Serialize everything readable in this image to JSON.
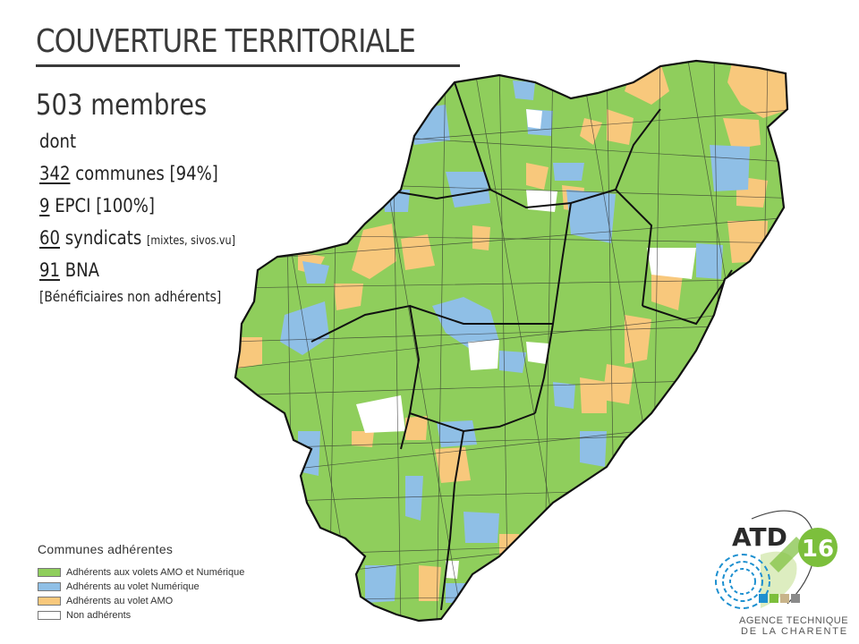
{
  "header": {
    "title": "COUVERTURE TERRITORIALE",
    "members": "503 membres"
  },
  "stats": {
    "dont": "dont",
    "communes": {
      "number": "342",
      "text": " communes [94%]"
    },
    "epci": {
      "number": "9",
      "text": " EPCI [100%]"
    },
    "syndicats": {
      "number": "60",
      "text": " syndicats ",
      "detail": "[mixtes, sivos.vu]"
    },
    "bna": {
      "number": "91",
      "text": " BNA"
    },
    "bna_note": "[Bénéficiaires non adhérents]"
  },
  "legend": {
    "title": "Communes adhérentes",
    "items": [
      {
        "label": "Adhérents aux volets AMO et Numérique",
        "color": "#8fce5c"
      },
      {
        "label": "Adhérents au volet Numérique",
        "color": "#8fbfe6"
      },
      {
        "label": "Adhérents au volet AMO",
        "color": "#f8c87c"
      },
      {
        "label": "Non adhérents",
        "color": "#ffffff"
      }
    ]
  },
  "map": {
    "colors": {
      "amo_numerique": "#8fce5c",
      "numerique": "#8fbfe6",
      "amo": "#f8c87c",
      "non_adherent": "#ffffff",
      "border": "#1a1a1a"
    }
  },
  "logo": {
    "name": "ATD",
    "number": "16",
    "line1": "AGENCE TECHNIQUE",
    "line2": "DE LA CHARENTE",
    "color_green": "#7cbf3c",
    "color_blue": "#1e90d0"
  }
}
